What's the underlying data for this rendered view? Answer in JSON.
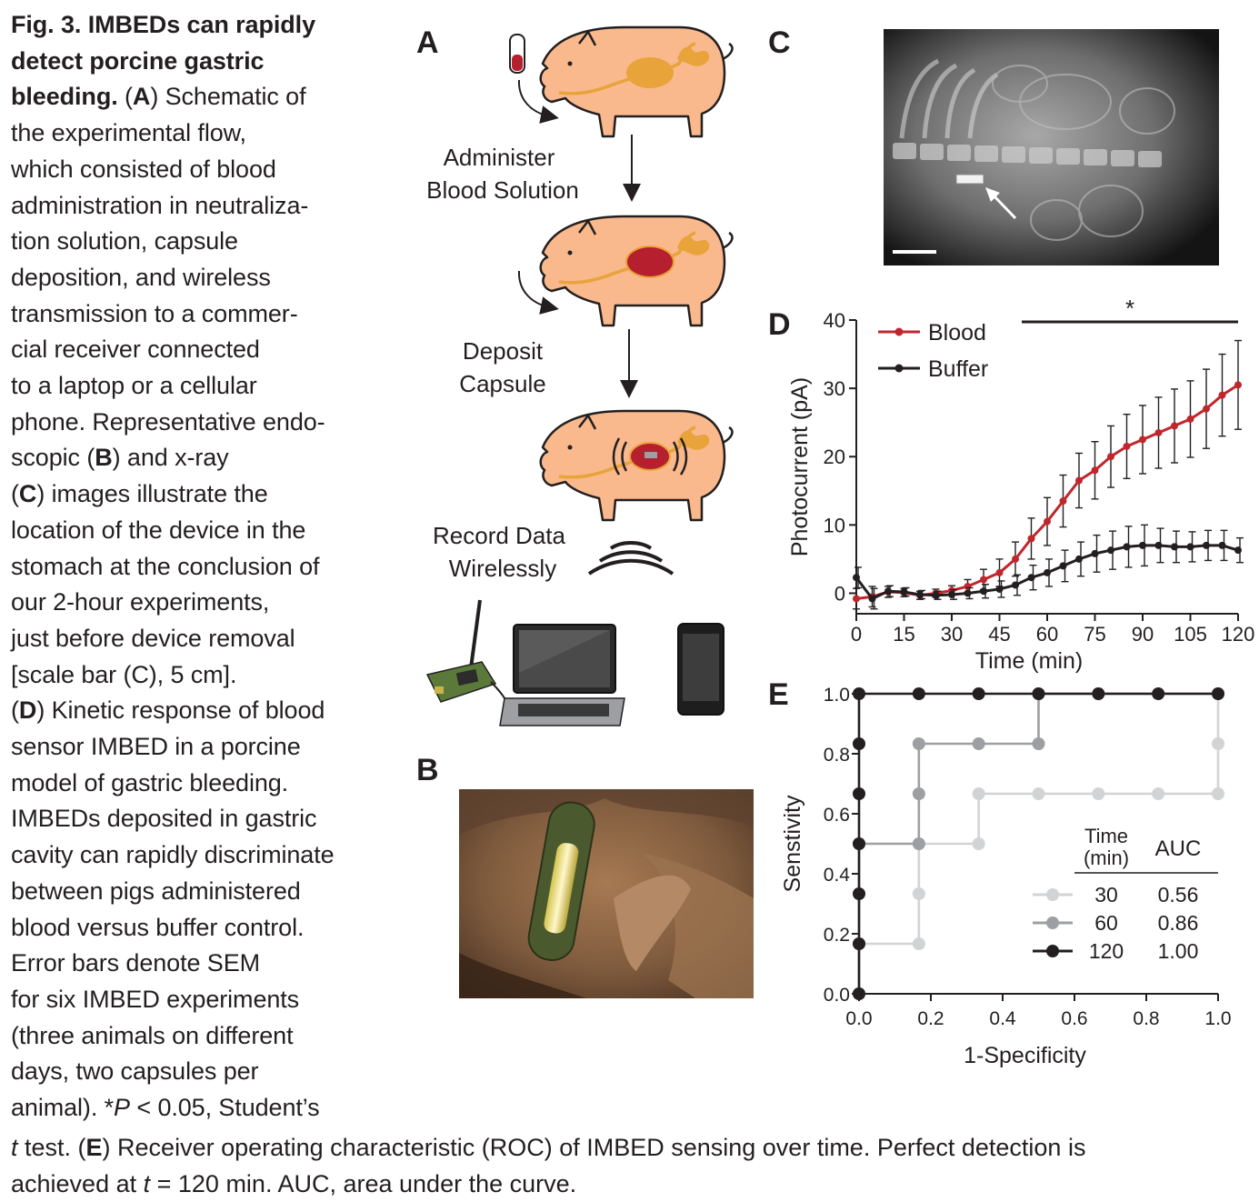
{
  "caption": {
    "fig_label": "Fig. 3. IMBEDs can rapidly",
    "fig_label_2": "detect porcine gastric",
    "fig_label_3": "bleeding.",
    "lines": [
      "the experimental flow,",
      "which consisted of blood",
      "administration in neutraliza-",
      "tion solution, capsule",
      "deposition, and wireless",
      "transmission to a commer-",
      "cial receiver connected",
      "to a laptop or a cellular",
      "phone. Representative endo-"
    ],
    "a_open": "(",
    "a_letter": "A",
    "a_rest": ") Schematic of",
    "b_pre": "scopic (",
    "b_letter": "B",
    "b_rest": ") and x-ray",
    "c_pre": "(",
    "c_letter": "C",
    "c_rest": ") images illustrate the",
    "lines2": [
      "location of the device in the",
      "stomach at the conclusion of",
      "our 2-hour experiments,",
      "just before device removal",
      "[scale bar (C), 5 cm]."
    ],
    "d_pre": "(",
    "d_letter": "D",
    "d_rest": ") Kinetic response of blood",
    "lines3": [
      "sensor IMBED in a porcine",
      "model of gastric bleeding.",
      "IMBEDs deposited in gastric",
      "cavity can rapidly discriminate",
      "between pigs administered",
      "blood versus buffer control.",
      "Error bars denote SEM",
      "for six IMBED experiments",
      "(three animals on different",
      "days, two capsules per"
    ],
    "last_side_pre": "animal). *",
    "p_letter": "P",
    "last_side_post": " < 0.05, Student’s",
    "bottom_t": "t",
    "bottom_1": " test. (",
    "e_letter": "E",
    "bottom_2": ") Receiver operating characteristic (ROC) of IMBED sensing over time. Perfect detection is",
    "bottom_3": "achieved at ",
    "bottom_t2": "t",
    "bottom_4": " = 120 min. AUC, area under the curve."
  },
  "panel_a": {
    "letter": "A",
    "step1_line1": "Administer",
    "step1_line2": "Blood Solution",
    "step2_line1": "Deposit",
    "step2_line2": "Capsule",
    "step3_line1": "Record Data",
    "step3_line2": "Wirelessly",
    "colors": {
      "pig_body": "#f9b98c",
      "stomach": "#e8a33a",
      "blood": "#b51f2e",
      "outline": "#231f20"
    }
  },
  "panel_b": {
    "letter": "B"
  },
  "panel_c": {
    "letter": "C"
  },
  "panel_d": {
    "letter": "D",
    "significance": "*"
  },
  "panel_e": {
    "letter": "E"
  },
  "chart_data": [
    {
      "type": "line",
      "panel": "D",
      "xlabel": "Time (min)",
      "ylabel": "Photocurrent (pA)",
      "xlim": [
        0,
        120
      ],
      "ylim": [
        -3,
        40
      ],
      "xticks": [
        0,
        15,
        30,
        45,
        60,
        75,
        90,
        105,
        120
      ],
      "yticks": [
        0,
        10,
        20,
        30,
        40
      ],
      "legend": "top-left",
      "significance_bar": {
        "from_x": 52,
        "to_x": 120,
        "label": "*"
      },
      "series": [
        {
          "name": "Blood",
          "color": "#c0272d",
          "x": [
            0,
            5,
            10,
            15,
            20,
            25,
            30,
            35,
            40,
            45,
            50,
            55,
            60,
            65,
            70,
            75,
            80,
            85,
            90,
            95,
            100,
            105,
            110,
            115,
            120
          ],
          "y": [
            -0.8,
            -0.5,
            0.2,
            0.1,
            -0.3,
            0.0,
            0.4,
            1.0,
            2.0,
            3.0,
            5.0,
            8.0,
            10.5,
            13.5,
            16.5,
            18.0,
            20.0,
            21.5,
            22.5,
            23.5,
            24.5,
            25.5,
            27.0,
            29.0,
            30.5
          ],
          "err": [
            1.5,
            1.5,
            0.8,
            0.6,
            0.6,
            0.6,
            0.7,
            1.0,
            1.5,
            2.0,
            2.5,
            3.0,
            3.5,
            3.8,
            4.0,
            4.2,
            4.5,
            4.7,
            5.0,
            5.2,
            5.4,
            5.6,
            5.8,
            6.0,
            6.5
          ]
        },
        {
          "name": "Buffer",
          "color": "#231f20",
          "x": [
            0,
            5,
            10,
            15,
            20,
            25,
            30,
            35,
            40,
            45,
            50,
            55,
            60,
            65,
            70,
            75,
            80,
            85,
            90,
            95,
            100,
            105,
            110,
            115,
            120
          ],
          "y": [
            2.3,
            -0.8,
            0.3,
            0.2,
            -0.2,
            -0.3,
            -0.2,
            0.0,
            0.3,
            0.6,
            1.2,
            2.3,
            3.0,
            4.0,
            5.0,
            5.8,
            6.3,
            6.8,
            7.0,
            7.0,
            6.8,
            6.8,
            7.0,
            7.0,
            6.3
          ],
          "err": [
            1.5,
            1.5,
            0.8,
            0.6,
            0.6,
            0.6,
            0.7,
            0.8,
            1.0,
            1.2,
            1.5,
            1.8,
            2.0,
            2.3,
            2.5,
            2.7,
            2.8,
            3.0,
            3.0,
            2.5,
            2.3,
            2.2,
            2.2,
            2.2,
            1.8
          ]
        }
      ]
    },
    {
      "type": "line",
      "panel": "E",
      "xlabel": "1-Specificity",
      "ylabel": "Senstivity",
      "xlim": [
        0,
        1
      ],
      "ylim": [
        0,
        1
      ],
      "xticks": [
        "0.0",
        "0.2",
        "0.4",
        "0.6",
        "0.8",
        "1.0"
      ],
      "yticks": [
        "0.0",
        "0.2",
        "0.4",
        "0.6",
        "0.8",
        "1.0"
      ],
      "legend": "bottom-right",
      "legend_header_1": "Time",
      "legend_header_1b": "(min)",
      "legend_header_2": "AUC",
      "series": [
        {
          "name": "30",
          "auc": "0.56",
          "color": "#d2d3d4",
          "x": [
            0,
            0,
            0.1667,
            0.1667,
            0.1667,
            0.3333,
            0.3333,
            0.5,
            0.6667,
            0.8333,
            1.0,
            1.0,
            1.0
          ],
          "y": [
            0,
            0.1667,
            0.1667,
            0.3333,
            0.5,
            0.5,
            0.6667,
            0.6667,
            0.6667,
            0.6667,
            0.6667,
            0.8333,
            1.0
          ]
        },
        {
          "name": "60",
          "auc": "0.86",
          "color": "#9d9fa2",
          "x": [
            0,
            0,
            0,
            0.1667,
            0.1667,
            0.1667,
            0.3333,
            0.5,
            0.5,
            0.6667,
            0.8333,
            1.0
          ],
          "y": [
            0,
            0.1667,
            0.5,
            0.5,
            0.6667,
            0.8333,
            0.8333,
            0.8333,
            1.0,
            1.0,
            1.0,
            1.0
          ]
        },
        {
          "name": "120",
          "auc": "1.00",
          "color": "#231f20",
          "x": [
            0,
            0,
            0,
            0,
            0,
            0,
            0,
            0.1667,
            0.3333,
            0.5,
            0.6667,
            0.8333,
            1.0
          ],
          "y": [
            0,
            0.1667,
            0.3333,
            0.5,
            0.6667,
            0.8333,
            1.0,
            1.0,
            1.0,
            1.0,
            1.0,
            1.0,
            1.0
          ]
        }
      ]
    }
  ]
}
